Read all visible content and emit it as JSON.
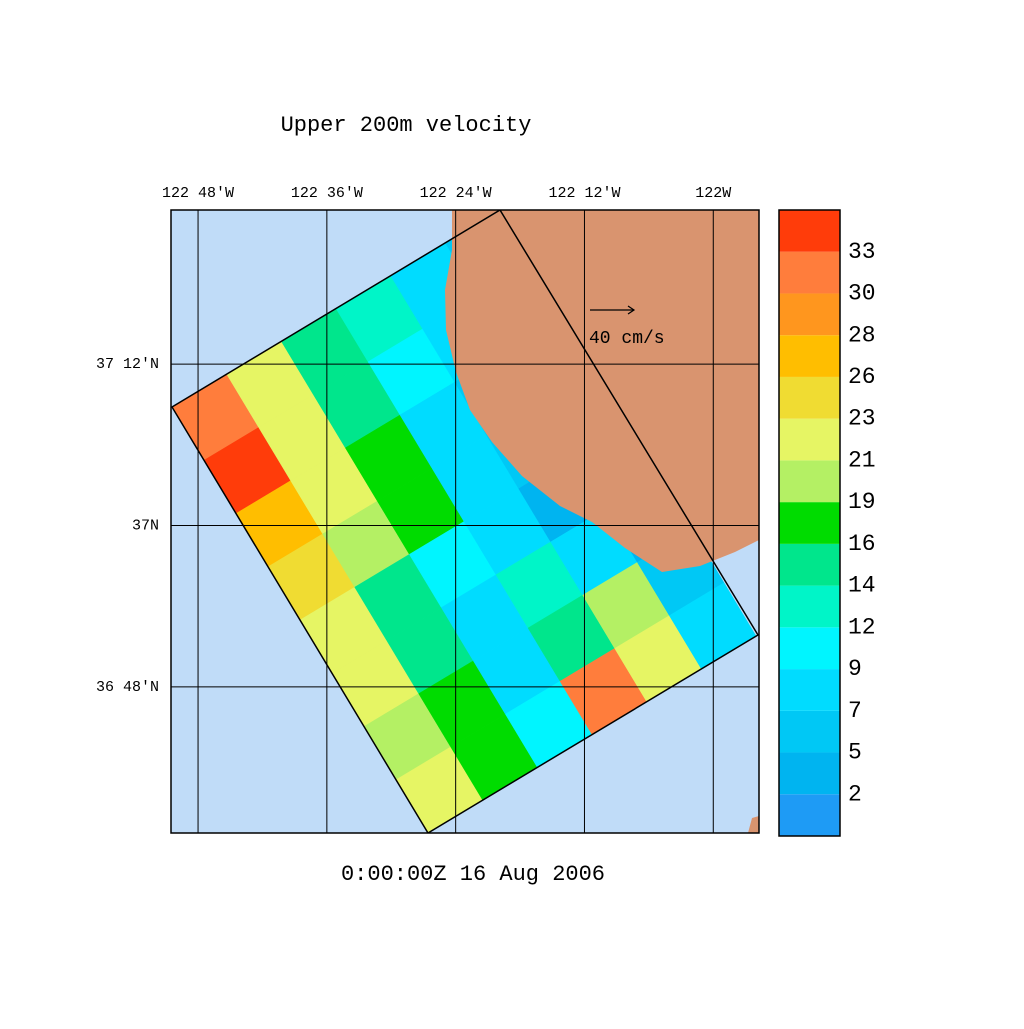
{
  "chart_data": {
    "type": "vector-map",
    "title": "Upper 200m velocity",
    "time_label": "0:00:00Z  16 Aug 2006",
    "xlim": [
      -122.842,
      -121.929
    ],
    "ylim": [
      36.619,
      37.391
    ],
    "xticks": [
      {
        "value": -122.8,
        "label": "122 48'W"
      },
      {
        "value": -122.6,
        "label": "122 36'W"
      },
      {
        "value": -122.4,
        "label": "122 24'W"
      },
      {
        "value": -122.2,
        "label": "122 12'W"
      },
      {
        "value": -122.0,
        "label": "122W"
      }
    ],
    "yticks": [
      {
        "value": 37.2,
        "label": "37 12'N"
      },
      {
        "value": 37.0,
        "label": "37N"
      },
      {
        "value": 36.8,
        "label": "36 48'N"
      }
    ],
    "grid": true,
    "ref_vector": {
      "value": 40,
      "label": "40 cm/s"
    },
    "levels": [
      2,
      5,
      7,
      9,
      12,
      14,
      16,
      19,
      21,
      23,
      26,
      28,
      30,
      33
    ],
    "colors": [
      "#1e9bf5",
      "#00b4f0",
      "#00c8f5",
      "#00dcff",
      "#00f5ff",
      "#00f5c8",
      "#00e68c",
      "#00dc00",
      "#b4f064",
      "#e6f564",
      "#f0dc32",
      "#ffbe00",
      "#ff961e",
      "#ff7d3c",
      "#ff3c0a",
      "#e60000"
    ],
    "speed_grid": [
      [
        30,
        22,
        15,
        12,
        7,
        5
      ],
      [
        33,
        22,
        14,
        9,
        7,
        5
      ],
      [
        26,
        21,
        16,
        8,
        6,
        4
      ],
      [
        24,
        19,
        17,
        8,
        5,
        3
      ],
      [
        22,
        15,
        9,
        7,
        4,
        3
      ],
      [
        21,
        14,
        8,
        13,
        8,
        4
      ],
      [
        20,
        16,
        8,
        15,
        20,
        6
      ],
      [
        21,
        17,
        10,
        30,
        22,
        8
      ]
    ]
  }
}
